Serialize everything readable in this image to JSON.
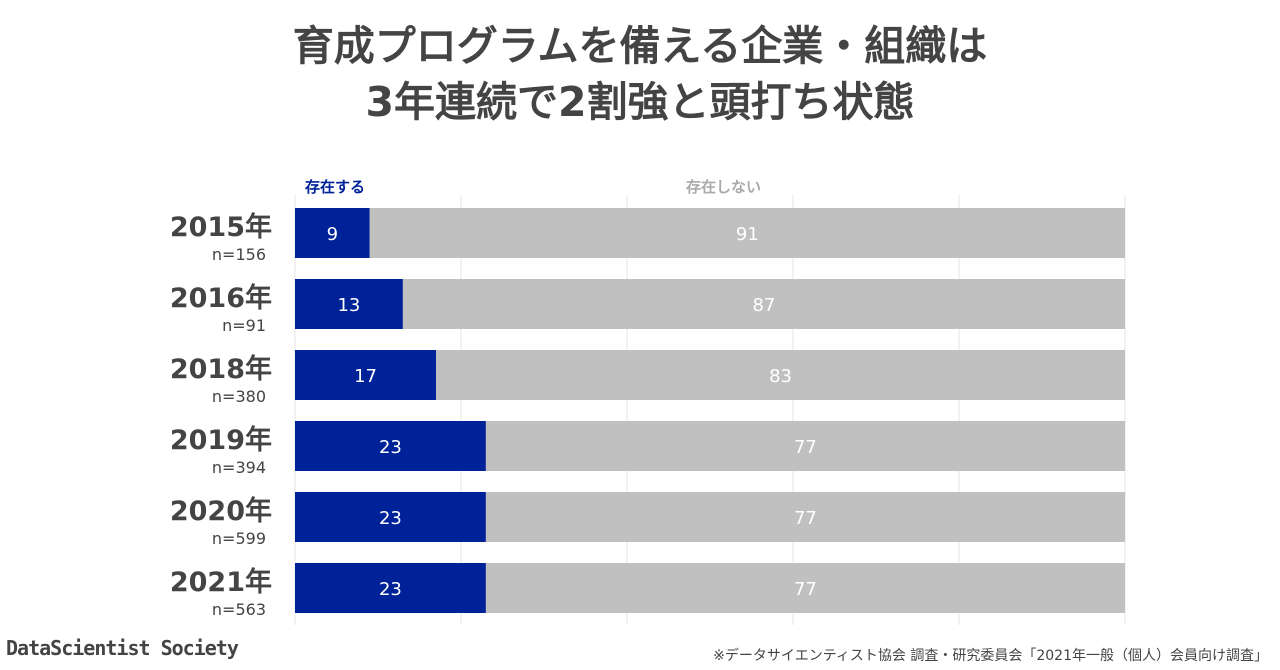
{
  "title": {
    "line1": "育成プログラムを備える企業・組織は",
    "line2": "3年連続で2割強と頭打ち状態"
  },
  "colors": {
    "present": "#002299",
    "absent": "#c0c0c0",
    "present_legend": "#002299",
    "absent_legend": "#aaaaaa",
    "grid": "#e6e6e6"
  },
  "chart_data": {
    "type": "bar",
    "orientation": "horizontal",
    "stacked": true,
    "normalized": true,
    "xlim": [
      0,
      100
    ],
    "categories": [
      "2015年",
      "2016年",
      "2018年",
      "2019年",
      "2020年",
      "2021年"
    ],
    "sample_sizes": [
      "n=156",
      "n=91",
      "n=380",
      "n=394",
      "n=599",
      "n=563"
    ],
    "series": [
      {
        "name": "存在する",
        "values": [
          9,
          13,
          17,
          23,
          23,
          23
        ]
      },
      {
        "name": "存在しない",
        "values": [
          91,
          87,
          83,
          77,
          77,
          77
        ]
      }
    ],
    "value_labels": {
      "present": [
        "9",
        "13",
        "17",
        "23",
        "23",
        "23"
      ],
      "absent": [
        "91",
        "87",
        "83",
        "77",
        "77",
        "77"
      ]
    },
    "grid": true,
    "legend_position": "top"
  },
  "source": "※データサイエンティスト協会 調査・研究委員会「2021年一般（個人）会員向け調査」",
  "logo": "DataScientist Society"
}
